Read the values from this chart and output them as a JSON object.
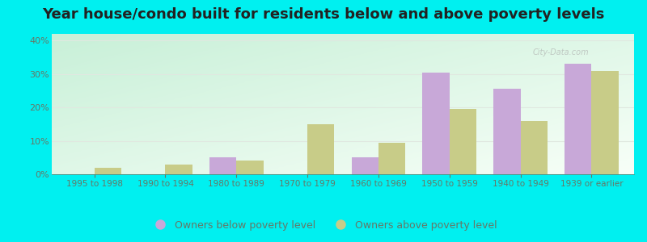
{
  "title": "Year house/condo built for residents below and above poverty levels",
  "categories": [
    "1995 to 1998",
    "1990 to 1994",
    "1980 to 1989",
    "1970 to 1979",
    "1960 to 1969",
    "1950 to 1959",
    "1940 to 1949",
    "1939 or earlier"
  ],
  "below_poverty": [
    0.0,
    0.0,
    5.0,
    0.0,
    5.0,
    30.5,
    25.5,
    33.0
  ],
  "above_poverty": [
    2.0,
    3.0,
    4.0,
    15.0,
    9.5,
    19.5,
    16.0,
    31.0
  ],
  "below_color": "#c8a8d8",
  "above_color": "#c8cc88",
  "ylim": [
    0,
    42
  ],
  "yticks": [
    0,
    10,
    20,
    30,
    40
  ],
  "ytick_labels": [
    "0%",
    "10%",
    "20%",
    "30%",
    "40%"
  ],
  "legend_below": "Owners below poverty level",
  "legend_above": "Owners above poverty level",
  "bg_color_topleft": "#c8f0d8",
  "bg_color_bottomright": "#f8fff8",
  "outer_bg": "#00f0f0",
  "bar_width": 0.38,
  "title_fontsize": 13,
  "grid_color": "#e0e8e0",
  "tick_color": "#667766",
  "watermark": "City-Data.com"
}
